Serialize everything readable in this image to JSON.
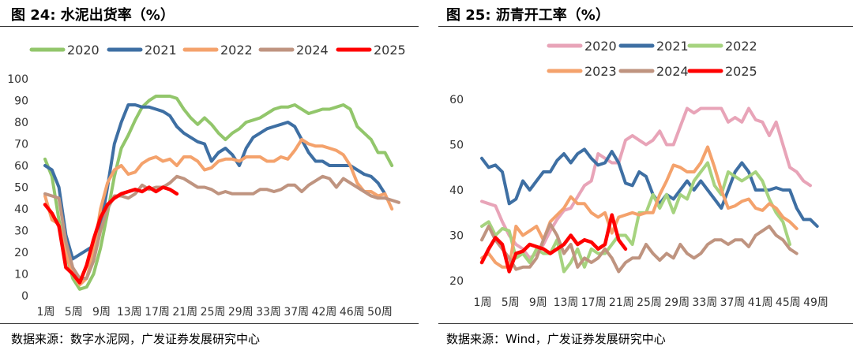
{
  "chart_data": [
    {
      "type": "line",
      "title": "图 24: 水泥出货率（%）",
      "source": "数据来源：数字水泥网，广发证券发展研究中心",
      "xlabel": "",
      "ylabel": "",
      "ylim": [
        0,
        100
      ],
      "yticks": [
        "0",
        "10",
        "20",
        "30",
        "40",
        "50",
        "60",
        "70",
        "80",
        "90",
        "100"
      ],
      "xtick_labels": [
        "1周",
        "5周",
        "9周",
        "13周",
        "17周",
        "21周",
        "25周",
        "29周",
        "33周",
        "37周",
        "42周",
        "46周",
        "50周"
      ],
      "x": [
        1,
        2,
        3,
        4,
        5,
        6,
        7,
        8,
        9,
        10,
        11,
        12,
        13,
        14,
        15,
        16,
        17,
        18,
        19,
        20,
        21,
        22,
        23,
        24,
        25,
        26,
        27,
        28,
        29,
        30,
        31,
        32,
        33,
        34,
        35,
        36,
        37,
        38,
        39,
        40,
        41,
        42,
        43,
        44,
        45,
        46,
        47,
        48,
        49,
        50,
        51,
        52
      ],
      "legend": "top",
      "series": [
        {
          "name": "2020",
          "color": "#92c66b",
          "values": [
            63,
            55,
            35,
            20,
            8,
            3,
            4,
            10,
            22,
            38,
            55,
            68,
            74,
            81,
            87,
            90,
            92,
            92,
            92,
            91,
            86,
            82,
            79,
            82,
            79,
            75,
            72,
            75,
            77,
            80,
            81,
            82,
            84,
            86,
            87,
            87,
            88,
            86,
            84,
            85,
            86,
            86,
            87,
            88,
            86,
            78,
            75,
            72,
            66,
            66,
            60,
            null
          ]
        },
        {
          "name": "2021",
          "color": "#3e6fa3",
          "values": [
            60,
            58,
            50,
            28,
            17,
            19,
            21,
            23,
            32,
            50,
            70,
            80,
            88,
            88,
            87,
            87,
            86,
            85,
            83,
            78,
            75,
            73,
            71,
            70,
            62,
            66,
            68,
            65,
            60,
            68,
            73,
            75,
            77,
            78,
            79,
            80,
            78,
            72,
            66,
            62,
            62,
            60,
            60,
            60,
            60,
            58,
            56,
            55,
            52,
            47,
            null,
            null
          ]
        },
        {
          "name": "2022",
          "color": "#f4a26c",
          "values": [
            46,
            35,
            33,
            20,
            10,
            5,
            8,
            20,
            40,
            52,
            58,
            60,
            56,
            57,
            61,
            63,
            64,
            62,
            63,
            60,
            64,
            64,
            62,
            58,
            59,
            62,
            63,
            63,
            62,
            64,
            64,
            64,
            62,
            62,
            64,
            63,
            67,
            72,
            70,
            69,
            69,
            68,
            67,
            65,
            60,
            52,
            48,
            48,
            46,
            47,
            40,
            null
          ]
        },
        {
          "name": "2024",
          "color": "#bf9480",
          "values": [
            47,
            46,
            45,
            25,
            13,
            8,
            8,
            16,
            30,
            40,
            46,
            46,
            45,
            47,
            51,
            49,
            50,
            50,
            52,
            55,
            54,
            52,
            50,
            50,
            49,
            47,
            48,
            47,
            47,
            47,
            47,
            49,
            49,
            48,
            49,
            51,
            51,
            48,
            51,
            53,
            55,
            54,
            50,
            54,
            52,
            50,
            48,
            46,
            45,
            45,
            44,
            43
          ]
        },
        {
          "name": "2025",
          "color": "#ff0000",
          "values": [
            42,
            38,
            32,
            13,
            10,
            6,
            14,
            26,
            36,
            42,
            45,
            47,
            48,
            49,
            48,
            50,
            48,
            50,
            49,
            47,
            null,
            null,
            null,
            null,
            null,
            null,
            null,
            null,
            null,
            null,
            null,
            null,
            null,
            null,
            null,
            null,
            null,
            null,
            null,
            null,
            null,
            null,
            null,
            null,
            null,
            null,
            null,
            null,
            null,
            null,
            null,
            null
          ]
        }
      ]
    },
    {
      "type": "line",
      "title": "图 25: 沥青开工率（%）",
      "source": "数据来源：Wind，广发证券发展研究中心",
      "xlabel": "",
      "ylabel": "",
      "ylim": [
        20,
        60
      ],
      "yticks": [
        "20",
        "30",
        "40",
        "50",
        "60"
      ],
      "xtick_labels": [
        "1周",
        "5周",
        "9周",
        "13周",
        "17周",
        "21周",
        "25周",
        "29周",
        "33周",
        "37周",
        "41周",
        "45周",
        "49周"
      ],
      "x": [
        1,
        2,
        3,
        4,
        5,
        6,
        7,
        8,
        9,
        10,
        11,
        12,
        13,
        14,
        15,
        16,
        17,
        18,
        19,
        20,
        21,
        22,
        23,
        24,
        25,
        26,
        27,
        28,
        29,
        30,
        31,
        32,
        33,
        34,
        35,
        36,
        37,
        38,
        39,
        40,
        41,
        42,
        43,
        44,
        45,
        46,
        47,
        48,
        49,
        50,
        51,
        52
      ],
      "legend": "top",
      "series": [
        {
          "name": "2020",
          "color": "#e8a4b8",
          "values": [
            37.5,
            37,
            36.5,
            33,
            30,
            28,
            27,
            25,
            26,
            28,
            31,
            33.5,
            35.5,
            36,
            38.5,
            41,
            42,
            48,
            47,
            46,
            46,
            51,
            52,
            51,
            50,
            51,
            53,
            50,
            50,
            54,
            58,
            57,
            58,
            58,
            58,
            58,
            55,
            56,
            55,
            58,
            55.5,
            55,
            52,
            55,
            50,
            45,
            44,
            42,
            41,
            null,
            null,
            null
          ]
        },
        {
          "name": "2021",
          "color": "#3e6fa3",
          "values": [
            47,
            45,
            45.5,
            44,
            37,
            38,
            42,
            40,
            42,
            44,
            44,
            46.5,
            48,
            46,
            48,
            49,
            47,
            45.5,
            46,
            48.5,
            46,
            41.5,
            41,
            44,
            43,
            39,
            37,
            39,
            38,
            40,
            42,
            40,
            42,
            40,
            38,
            36,
            40,
            44,
            46,
            44,
            40,
            40,
            40,
            40.5,
            40,
            40,
            36,
            33.5,
            33.5,
            32,
            null,
            null
          ]
        },
        {
          "name": "2022",
          "color": "#a6d37f",
          "values": [
            32,
            33,
            30,
            31.5,
            31,
            25,
            26,
            24,
            27,
            26,
            26,
            29,
            22,
            24,
            27,
            23,
            27,
            26,
            26,
            28,
            30,
            30,
            28,
            35,
            35,
            39,
            36,
            39,
            35,
            39,
            38,
            42,
            44,
            46,
            41,
            39,
            44,
            43,
            42,
            43,
            44,
            42,
            38,
            35,
            33,
            28,
            null,
            null,
            null,
            null,
            null,
            null
          ]
        },
        {
          "name": "2023",
          "color": "#f4a26c",
          "values": [
            25,
            26,
            24,
            23,
            23,
            32,
            30,
            31,
            32,
            29,
            33,
            34.5,
            36,
            38.5,
            37,
            37,
            35,
            34,
            35,
            30.5,
            34,
            34.5,
            35,
            34.5,
            35,
            35,
            39,
            42,
            45.5,
            45,
            44,
            44,
            46,
            49.5,
            45,
            40,
            36,
            36.5,
            37.5,
            38,
            36,
            35.5,
            37,
            36,
            34,
            33,
            31.5,
            null,
            null,
            null,
            null,
            null
          ]
        },
        {
          "name": "2024",
          "color": "#bf9480",
          "values": [
            29,
            32,
            29,
            27,
            25,
            22.5,
            23,
            23,
            25,
            29,
            32.5,
            30,
            26,
            28,
            23,
            25,
            24,
            25,
            27,
            25,
            22,
            24,
            25,
            25,
            28,
            26,
            24.5,
            26,
            25,
            28,
            26,
            25,
            26,
            28,
            29,
            29,
            28,
            29,
            29,
            27.5,
            30,
            31,
            32,
            30,
            29,
            27,
            26,
            null,
            null,
            null,
            null,
            null
          ]
        },
        {
          "name": "2025",
          "color": "#ff0000",
          "values": [
            24,
            27,
            29.5,
            28,
            22,
            26,
            26.5,
            28,
            27.5,
            27,
            26,
            27,
            28,
            30,
            28,
            29,
            28.5,
            27,
            28,
            34.5,
            29,
            27,
            null,
            null,
            null,
            null,
            null,
            null,
            null,
            null,
            null,
            null,
            null,
            null,
            null,
            null,
            null,
            null,
            null,
            null,
            null,
            null,
            null,
            null,
            null,
            null,
            null,
            null,
            null,
            null,
            null,
            null
          ]
        }
      ]
    }
  ]
}
